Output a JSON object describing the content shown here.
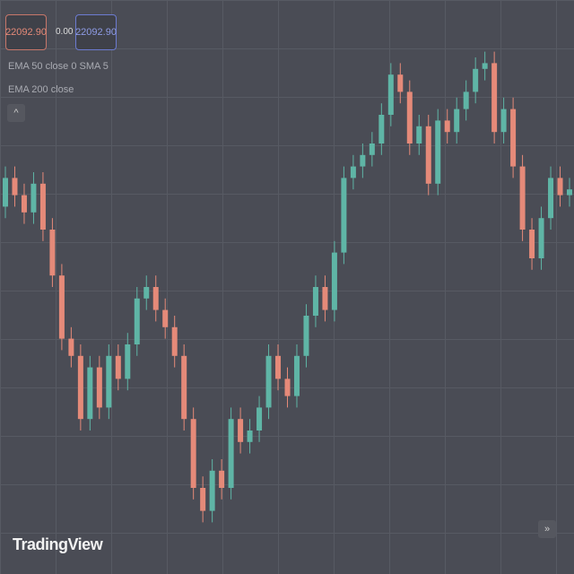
{
  "toolbar": {
    "sell_price": "22092.90",
    "spread": "0.00",
    "buy_price": "22092.90",
    "indicator_1": "EMA 50 close 0 SMA 5",
    "indicator_2": "EMA 200 close",
    "brand": "TradingView"
  },
  "chart_data": {
    "type": "candlestick",
    "ylim": [
      0,
      100
    ],
    "up_color": "#5fb5a6",
    "down_color": "#e58a79",
    "open": [
      64,
      69,
      66,
      63,
      68,
      60,
      52,
      41,
      38,
      27,
      36,
      29,
      38,
      34,
      40,
      48,
      50,
      46,
      43,
      38,
      27,
      15,
      11,
      18,
      15,
      27,
      23,
      25,
      29,
      38,
      34,
      31,
      38,
      45,
      50,
      46,
      56,
      69,
      71,
      73,
      75,
      80,
      87,
      84,
      75,
      78,
      68,
      79,
      77,
      81,
      84,
      88,
      89,
      77,
      81,
      71,
      60,
      55,
      62,
      69,
      66
    ],
    "high": [
      71,
      71,
      68,
      70,
      70,
      62,
      54,
      43,
      40,
      38,
      38,
      40,
      40,
      42,
      50,
      52,
      52,
      48,
      45,
      40,
      29,
      17,
      20,
      20,
      29,
      29,
      27,
      31,
      40,
      40,
      36,
      40,
      47,
      52,
      52,
      58,
      71,
      73,
      75,
      77,
      82,
      89,
      89,
      86,
      80,
      80,
      81,
      81,
      83,
      86,
      90,
      91,
      91,
      83,
      83,
      73,
      62,
      64,
      71,
      71,
      69
    ],
    "low": [
      62,
      64,
      61,
      61,
      58,
      50,
      39,
      36,
      25,
      25,
      27,
      27,
      32,
      32,
      38,
      46,
      44,
      41,
      36,
      25,
      13,
      9,
      9,
      13,
      13,
      21,
      21,
      23,
      27,
      32,
      29,
      29,
      36,
      43,
      44,
      44,
      54,
      67,
      69,
      71,
      73,
      78,
      82,
      73,
      73,
      66,
      66,
      75,
      75,
      79,
      82,
      86,
      75,
      75,
      69,
      58,
      53,
      53,
      60,
      64,
      64
    ],
    "close": [
      69,
      66,
      63,
      68,
      60,
      52,
      41,
      38,
      27,
      36,
      29,
      38,
      34,
      40,
      48,
      50,
      46,
      43,
      38,
      27,
      15,
      11,
      18,
      15,
      27,
      23,
      25,
      29,
      38,
      34,
      31,
      38,
      45,
      50,
      46,
      56,
      69,
      71,
      73,
      75,
      80,
      87,
      84,
      75,
      78,
      68,
      79,
      77,
      81,
      84,
      88,
      89,
      77,
      81,
      71,
      60,
      55,
      62,
      69,
      66,
      67
    ]
  }
}
